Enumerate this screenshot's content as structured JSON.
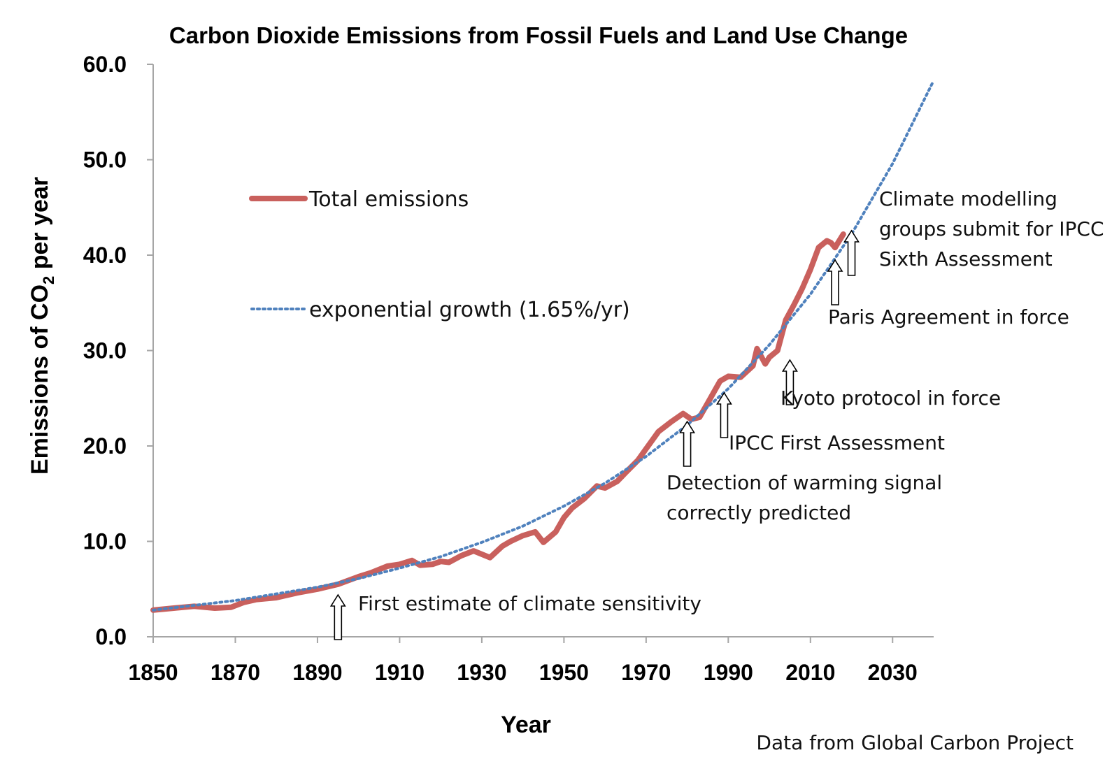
{
  "chart_data": {
    "type": "line",
    "title": "Carbon Dioxide Emissions from Fossil Fuels and Land Use Change",
    "xlabel": "Year",
    "ylabel": {
      "main": "Emissions of CO",
      "sub": "2",
      "rest": " per year"
    },
    "xlim": [
      1850,
      2040
    ],
    "ylim": [
      0,
      60
    ],
    "x_ticks": [
      "1850",
      "1870",
      "1890",
      "1910",
      "1930",
      "1950",
      "1970",
      "1990",
      "2010",
      "2030"
    ],
    "y_ticks": [
      "0.0",
      "10.0",
      "20.0",
      "30.0",
      "40.0",
      "50.0",
      "60.0"
    ],
    "grid": false,
    "legend_position": "upper-left",
    "series": [
      {
        "name": "Total emissions",
        "style": "solid",
        "color": "#c9605d",
        "x": [
          1850,
          1855,
          1860,
          1865,
          1869,
          1872,
          1875,
          1880,
          1885,
          1890,
          1895,
          1900,
          1903,
          1907,
          1910,
          1913,
          1915,
          1918,
          1920,
          1922,
          1925,
          1928,
          1932,
          1935,
          1937,
          1940,
          1943,
          1945,
          1948,
          1950,
          1952,
          1955,
          1958,
          1960,
          1963,
          1965,
          1968,
          1970,
          1973,
          1976,
          1979,
          1981,
          1983,
          1985,
          1988,
          1990,
          1993,
          1996,
          1997,
          1999,
          2000,
          2002,
          2004,
          2006,
          2008,
          2010,
          2012,
          2014,
          2015,
          2016,
          2018
        ],
        "y": [
          2.8,
          3.0,
          3.2,
          3.0,
          3.1,
          3.6,
          3.9,
          4.1,
          4.6,
          5.0,
          5.5,
          6.3,
          6.7,
          7.4,
          7.6,
          8.0,
          7.5,
          7.6,
          7.9,
          7.8,
          8.5,
          9.0,
          8.3,
          9.5,
          10.0,
          10.6,
          11.0,
          9.9,
          11.0,
          12.5,
          13.5,
          14.5,
          15.8,
          15.6,
          16.3,
          17.2,
          18.5,
          19.7,
          21.5,
          22.5,
          23.4,
          22.8,
          23.0,
          24.5,
          26.8,
          27.3,
          27.2,
          28.4,
          30.2,
          28.6,
          29.3,
          30.0,
          33.2,
          34.8,
          36.5,
          38.5,
          40.8,
          41.5,
          41.3,
          40.8,
          42.2
        ]
      },
      {
        "name": "exponential growth (1.65%/yr)",
        "style": "dotted",
        "color": "#4f81bd",
        "x": [
          1850,
          1860,
          1870,
          1880,
          1890,
          1900,
          1910,
          1920,
          1930,
          1940,
          1950,
          1960,
          1970,
          1980,
          1990,
          2000,
          2010,
          2020,
          2030,
          2040
        ],
        "y": [
          2.8,
          3.3,
          3.8,
          4.5,
          5.2,
          6.1,
          7.2,
          8.4,
          9.9,
          11.6,
          13.7,
          16.1,
          18.9,
          22.2,
          26.0,
          30.6,
          35.9,
          42.2,
          49.6,
          58.3
        ]
      }
    ],
    "legend": [
      {
        "label": "Total emissions",
        "style": "solid"
      },
      {
        "label": "exponential growth (1.65%/yr)",
        "style": "dotted"
      }
    ],
    "annotations": [
      {
        "year": 1895,
        "value": 5.5,
        "lines": [
          "First estimate of climate sensitivity"
        ]
      },
      {
        "year": 1980,
        "value": 23.2,
        "lines": [
          "Detection of warming signal",
          "correctly predicted"
        ]
      },
      {
        "year": 1989,
        "value": 25.6,
        "lines": [
          "IPCC First Assessment"
        ]
      },
      {
        "year": 2005,
        "value": 29.9,
        "lines": [
          "Kyoto protocol in force"
        ]
      },
      {
        "year": 2016,
        "value": 40.0,
        "lines": [
          "Paris Agreement in force"
        ]
      },
      {
        "year": 2020,
        "value": 42.0,
        "lines": [
          "Climate modelling",
          "groups submit for IPCC",
          "Sixth Assessment"
        ]
      }
    ],
    "source_note": "Data from Global Carbon Project"
  }
}
